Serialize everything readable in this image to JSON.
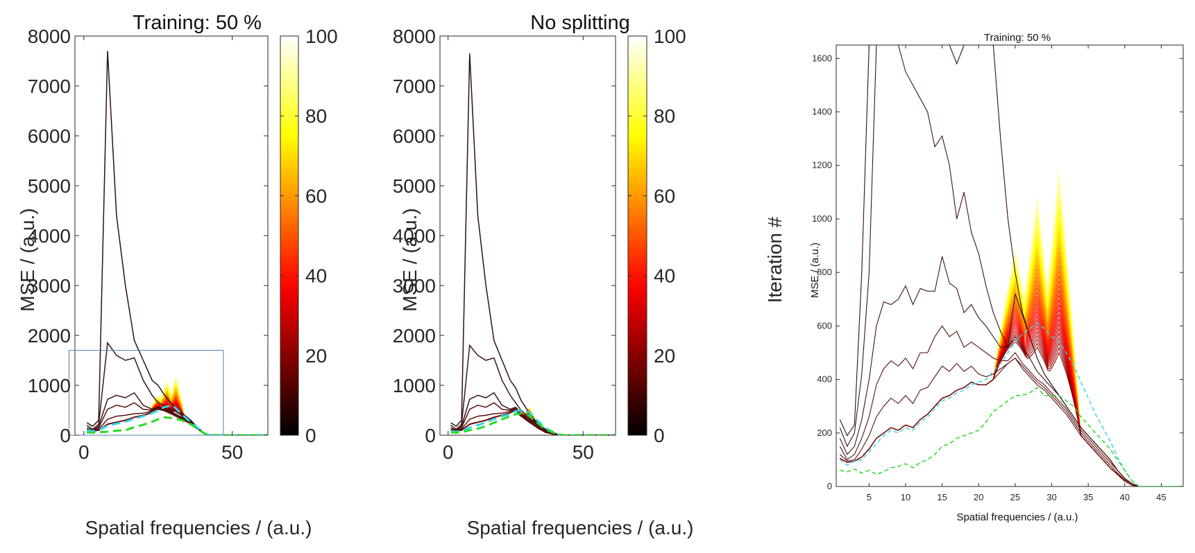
{
  "chart_data": [
    {
      "type": "line",
      "title": "Training: 50 %",
      "xlabel": "Spatial frequencies / (a.u.)",
      "ylabel": "MSE / (a.u.)",
      "xlim": [
        -3,
        62
      ],
      "ylim": [
        0,
        8000
      ],
      "xticks": [
        "0",
        "50"
      ],
      "yticks": [
        "0",
        "1000",
        "2000",
        "3000",
        "4000",
        "5000",
        "6000",
        "7000",
        "8000"
      ],
      "colorbar": {
        "ticks": [
          "0",
          "20",
          "40",
          "60",
          "80",
          "100"
        ],
        "range": [
          0,
          100
        ],
        "colormap": "hot"
      },
      "zoom_box": {
        "x": [
          -5,
          47
        ],
        "y": [
          0,
          1700
        ]
      },
      "x": [
        1,
        3,
        5,
        8,
        11,
        14,
        17,
        20,
        23,
        25,
        27,
        30,
        33,
        36,
        39,
        41,
        43,
        47,
        55,
        62
      ],
      "early_series": [
        {
          "iteration": 1,
          "values": [
            250,
            180,
            300,
            7700,
            4400,
            3000,
            1900,
            1500,
            1100,
            1000,
            820,
            600,
            450,
            300,
            120,
            20,
            0,
            0,
            0,
            0
          ]
        },
        {
          "iteration": 2,
          "values": [
            200,
            120,
            220,
            1850,
            1600,
            1500,
            1550,
            1100,
            800,
            650,
            600,
            500,
            400,
            280,
            120,
            20,
            0,
            0,
            0,
            0
          ]
        },
        {
          "iteration": 3,
          "values": [
            150,
            100,
            180,
            720,
            800,
            750,
            850,
            600,
            520,
            560,
            540,
            450,
            360,
            260,
            110,
            20,
            0,
            0,
            0,
            0
          ]
        },
        {
          "iteration": 5,
          "values": [
            120,
            90,
            150,
            520,
            600,
            560,
            650,
            520,
            500,
            540,
            520,
            430,
            340,
            250,
            110,
            20,
            0,
            0,
            0,
            0
          ]
        },
        {
          "iteration": 8,
          "values": [
            100,
            90,
            120,
            320,
            380,
            400,
            430,
            440,
            480,
            520,
            500,
            420,
            330,
            240,
            100,
            20,
            0,
            0,
            0,
            0
          ]
        },
        {
          "iteration": 15,
          "values": [
            100,
            85,
            100,
            220,
            260,
            300,
            360,
            400,
            450,
            520,
            490,
            410,
            320,
            230,
            100,
            20,
            0,
            0,
            0,
            0
          ]
        }
      ],
      "late_peaks": {
        "x": [
          25,
          28,
          31
        ],
        "peak_value_at_iteration_100": [
          800,
          1100,
          1200
        ],
        "peak_value_at_iteration_20": [
          540,
          520,
          500
        ]
      },
      "reference_series": [
        {
          "style": "cyan-dashed",
          "values": [
            100,
            80,
            100,
            190,
            230,
            270,
            330,
            380,
            440,
            500,
            560,
            600,
            420,
            260,
            120,
            20,
            0,
            0,
            0,
            0
          ]
        },
        {
          "style": "green-dashed",
          "values": [
            60,
            50,
            60,
            70,
            90,
            100,
            160,
            210,
            270,
            320,
            360,
            340,
            300,
            220,
            100,
            20,
            0,
            0,
            0,
            0
          ]
        }
      ]
    },
    {
      "type": "line",
      "title": "No splitting",
      "xlabel": "Spatial frequencies / (a.u.)",
      "ylabel": "MSE / (a.u.)",
      "xlim": [
        -3,
        62
      ],
      "ylim": [
        0,
        8000
      ],
      "xticks": [
        "0",
        "50"
      ],
      "yticks": [
        "0",
        "1000",
        "2000",
        "3000",
        "4000",
        "5000",
        "6000",
        "7000",
        "8000"
      ],
      "colorbar": {
        "ticks": [
          "0",
          "20",
          "40",
          "60",
          "80",
          "100"
        ],
        "range": [
          0,
          100
        ],
        "colormap": "hot",
        "label": "Iteration #"
      },
      "x": [
        1,
        3,
        5,
        8,
        11,
        14,
        17,
        20,
        23,
        25,
        27,
        30,
        33,
        36,
        39,
        41,
        43,
        47,
        55,
        62
      ],
      "early_series": [
        {
          "iteration": 1,
          "values": [
            250,
            180,
            300,
            7650,
            4400,
            3000,
            1900,
            1500,
            1100,
            950,
            700,
            450,
            250,
            120,
            50,
            10,
            0,
            0,
            0,
            0
          ]
        },
        {
          "iteration": 2,
          "values": [
            200,
            120,
            220,
            1800,
            1600,
            1500,
            1550,
            1100,
            800,
            650,
            500,
            350,
            220,
            100,
            40,
            10,
            0,
            0,
            0,
            0
          ]
        },
        {
          "iteration": 3,
          "values": [
            150,
            100,
            180,
            720,
            800,
            750,
            850,
            600,
            520,
            560,
            450,
            320,
            200,
            90,
            40,
            10,
            0,
            0,
            0,
            0
          ]
        },
        {
          "iteration": 5,
          "values": [
            120,
            90,
            150,
            520,
            600,
            560,
            650,
            520,
            500,
            540,
            420,
            300,
            190,
            80,
            30,
            10,
            0,
            0,
            0,
            0
          ]
        },
        {
          "iteration": 8,
          "values": [
            100,
            90,
            120,
            320,
            380,
            400,
            430,
            440,
            480,
            520,
            400,
            280,
            170,
            70,
            30,
            10,
            0,
            0,
            0,
            0
          ]
        },
        {
          "iteration": 15,
          "values": [
            100,
            85,
            100,
            220,
            260,
            300,
            360,
            400,
            450,
            500,
            380,
            260,
            150,
            60,
            20,
            5,
            0,
            0,
            0,
            0
          ]
        }
      ],
      "late_peaks": {
        "x": [
          30
        ],
        "peak_value_at_iteration_100": [
          560
        ],
        "peak_value_at_iteration_20": [
          420
        ]
      },
      "reference_series": [
        {
          "style": "cyan-dashed",
          "values": [
            80,
            70,
            90,
            150,
            200,
            260,
            320,
            380,
            420,
            480,
            500,
            460,
            300,
            150,
            60,
            10,
            0,
            0,
            0,
            0
          ]
        },
        {
          "style": "green-dashed",
          "values": [
            60,
            50,
            60,
            100,
            130,
            180,
            250,
            320,
            380,
            420,
            440,
            400,
            250,
            120,
            50,
            10,
            0,
            0,
            0,
            0
          ]
        }
      ]
    },
    {
      "type": "line",
      "title": "Training: 50 %",
      "xlabel": "Spatial frequencies / (a.u.)",
      "ylabel": "MSE / (a.u.)",
      "xlim": [
        0.5,
        48
      ],
      "ylim": [
        0,
        1650
      ],
      "xticks": [
        "5",
        "10",
        "15",
        "20",
        "25",
        "30",
        "35",
        "40",
        "45"
      ],
      "yticks": [
        "0",
        "200",
        "400",
        "600",
        "800",
        "1000",
        "1200",
        "1400",
        "1600"
      ],
      "x": [
        1,
        2,
        3,
        4,
        5,
        6,
        7,
        8,
        9,
        10,
        11,
        12,
        13,
        14,
        15,
        16,
        17,
        18,
        19,
        20,
        21,
        22,
        23,
        24,
        25,
        26,
        27,
        28,
        29,
        30,
        31,
        32,
        33,
        34,
        35,
        36,
        37,
        38,
        39,
        40,
        41,
        42,
        43,
        44,
        45,
        46,
        47,
        48
      ],
      "early_series": [
        {
          "iteration": 1,
          "values": [
            250,
            190,
            230,
            800,
            1650,
            1650,
            1650,
            1650,
            1650,
            1650,
            1650,
            1650,
            1650,
            1650,
            1650,
            1650,
            1580,
            1650,
            1650,
            1650,
            1650,
            1650,
            1300,
            1000,
            800,
            650,
            560,
            480,
            420,
            380,
            340,
            300,
            260,
            220,
            190,
            160,
            130,
            100,
            60,
            30,
            10,
            0,
            0,
            0,
            0,
            0,
            0,
            0
          ]
        },
        {
          "iteration": 2,
          "values": [
            220,
            150,
            200,
            420,
            800,
            1650,
            1650,
            1650,
            1650,
            1550,
            1500,
            1450,
            1400,
            1270,
            1310,
            1200,
            1000,
            1100,
            950,
            870,
            750,
            650,
            580,
            520,
            720,
            640,
            560,
            480,
            420,
            380,
            340,
            300,
            260,
            220,
            190,
            160,
            130,
            100,
            60,
            30,
            10,
            0,
            0,
            0,
            0,
            0,
            0,
            0
          ]
        },
        {
          "iteration": 3,
          "values": [
            180,
            120,
            150,
            250,
            400,
            600,
            690,
            680,
            700,
            750,
            680,
            740,
            730,
            730,
            860,
            760,
            740,
            650,
            680,
            630,
            600,
            560,
            520,
            520,
            560,
            520,
            480,
            430,
            400,
            370,
            340,
            300,
            260,
            220,
            190,
            160,
            130,
            100,
            60,
            30,
            10,
            0,
            0,
            0,
            0,
            0,
            0,
            0
          ]
        },
        {
          "iteration": 4,
          "values": [
            150,
            100,
            120,
            180,
            260,
            380,
            440,
            470,
            450,
            480,
            440,
            500,
            500,
            560,
            600,
            560,
            580,
            520,
            540,
            520,
            500,
            480,
            470,
            470,
            500,
            460,
            430,
            400,
            380,
            350,
            320,
            290,
            250,
            210,
            180,
            150,
            120,
            90,
            60,
            30,
            10,
            0,
            0,
            0,
            0,
            0,
            0,
            0
          ]
        },
        {
          "iteration": 6,
          "values": [
            120,
            95,
            100,
            140,
            190,
            260,
            300,
            330,
            310,
            340,
            310,
            360,
            370,
            410,
            450,
            430,
            460,
            430,
            450,
            420,
            410,
            420,
            440,
            460,
            480,
            450,
            420,
            390,
            370,
            340,
            310,
            280,
            240,
            200,
            170,
            140,
            110,
            80,
            50,
            25,
            10,
            0,
            0,
            0,
            0,
            0,
            0,
            0
          ]
        },
        {
          "iteration": 10,
          "values": [
            105,
            90,
            95,
            110,
            140,
            180,
            200,
            220,
            210,
            230,
            220,
            250,
            270,
            300,
            330,
            340,
            360,
            370,
            390,
            380,
            380,
            400,
            430,
            460,
            480,
            440,
            410,
            380,
            360,
            330,
            300,
            270,
            230,
            190,
            160,
            130,
            100,
            70,
            45,
            20,
            5,
            0,
            0,
            0,
            0,
            0,
            0,
            0
          ]
        }
      ],
      "late_peaks": {
        "x": [
          25,
          28,
          31
        ],
        "peak_value_at_iteration_100": [
          900,
          1110,
          1220
        ],
        "peak_value_at_iteration_20": [
          540,
          520,
          500
        ]
      },
      "reference_series": [
        {
          "style": "cyan-dashed",
          "values": [
            100,
            80,
            95,
            100,
            130,
            160,
            190,
            210,
            200,
            220,
            210,
            240,
            260,
            290,
            320,
            330,
            350,
            360,
            380,
            390,
            400,
            430,
            460,
            500,
            540,
            570,
            590,
            610,
            590,
            560,
            540,
            500,
            450,
            390,
            330,
            270,
            220,
            170,
            110,
            60,
            20,
            0,
            0,
            0,
            0,
            0,
            0,
            0
          ]
        },
        {
          "style": "green-dashed",
          "values": [
            60,
            55,
            65,
            50,
            60,
            45,
            55,
            70,
            75,
            85,
            70,
            90,
            100,
            120,
            150,
            160,
            180,
            190,
            200,
            210,
            240,
            280,
            300,
            320,
            340,
            340,
            350,
            370,
            340,
            340,
            340,
            320,
            300,
            260,
            230,
            200,
            170,
            140,
            100,
            60,
            20,
            0,
            0,
            0,
            0,
            0,
            0,
            0
          ]
        }
      ]
    }
  ]
}
